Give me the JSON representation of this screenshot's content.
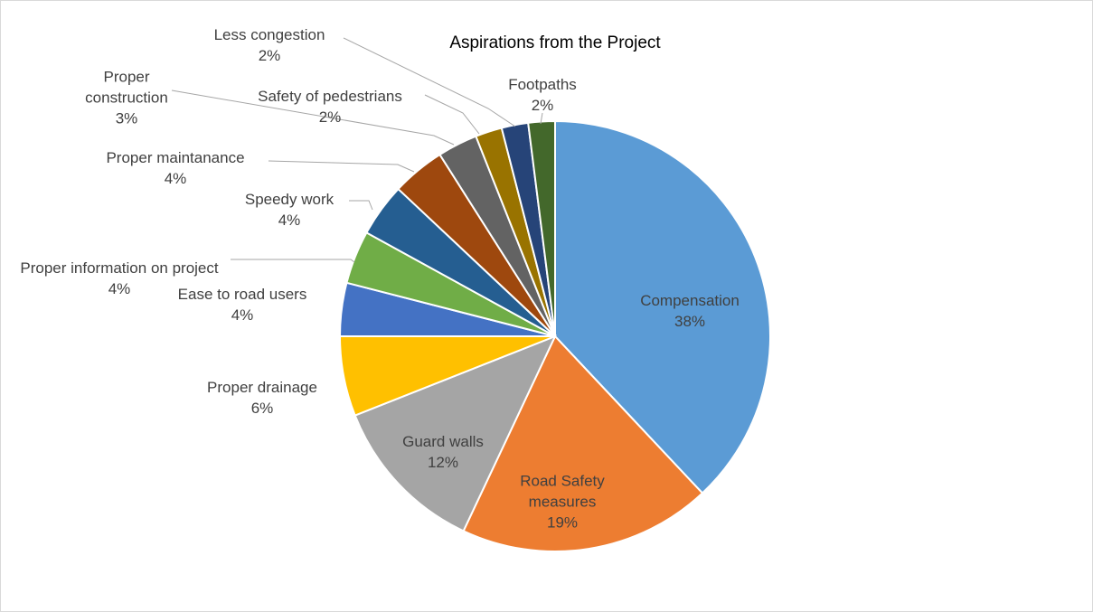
{
  "chart_data": {
    "type": "pie",
    "title": "Aspirations from the Project",
    "categories": [
      "Compensation",
      "Road Safety measures",
      "Guard walls",
      "Proper drainage",
      "Ease to road users",
      "Proper information on project",
      "Speedy work",
      "Proper maintanance",
      "Proper construction",
      "Safety of pedestrians",
      "Less congestion",
      "Footpaths"
    ],
    "values": [
      38,
      19,
      12,
      6,
      4,
      4,
      4,
      4,
      3,
      2,
      2,
      2
    ],
    "value_labels": [
      "38%",
      "19%",
      "12%",
      "6%",
      "4%",
      "4%",
      "4%",
      "4%",
      "3%",
      "2%",
      "2%",
      "2%"
    ],
    "colors": [
      "#5b9bd5",
      "#ed7d31",
      "#a5a5a5",
      "#ffc000",
      "#4472c4",
      "#70ad47",
      "#255e91",
      "#9e480e",
      "#636363",
      "#997300",
      "#264478",
      "#43682b"
    ]
  }
}
